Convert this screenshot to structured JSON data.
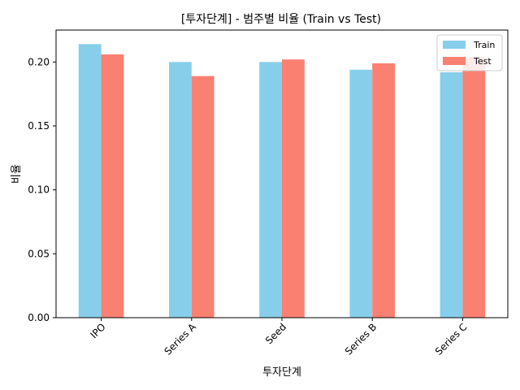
{
  "chart_data": {
    "type": "bar",
    "title": "[투자단계] - 범주별 비율 (Train vs Test)",
    "xlabel": "투자단계",
    "ylabel": "비율",
    "categories": [
      "IPO",
      "Series A",
      "Seed",
      "Series B",
      "Series C"
    ],
    "series": [
      {
        "name": "Train",
        "values": [
          0.214,
          0.2,
          0.2,
          0.194,
          0.192
        ],
        "color": "#87ceeb"
      },
      {
        "name": "Test",
        "values": [
          0.206,
          0.189,
          0.202,
          0.199,
          0.204
        ],
        "color": "#fa8072"
      }
    ],
    "ylim": [
      0,
      0.225
    ],
    "yticks": [
      "0.00",
      "0.05",
      "0.10",
      "0.15",
      "0.20"
    ],
    "ytick_values": [
      0,
      0.05,
      0.1,
      0.15,
      0.2
    ],
    "grid": false,
    "legend_position": "top-right"
  }
}
